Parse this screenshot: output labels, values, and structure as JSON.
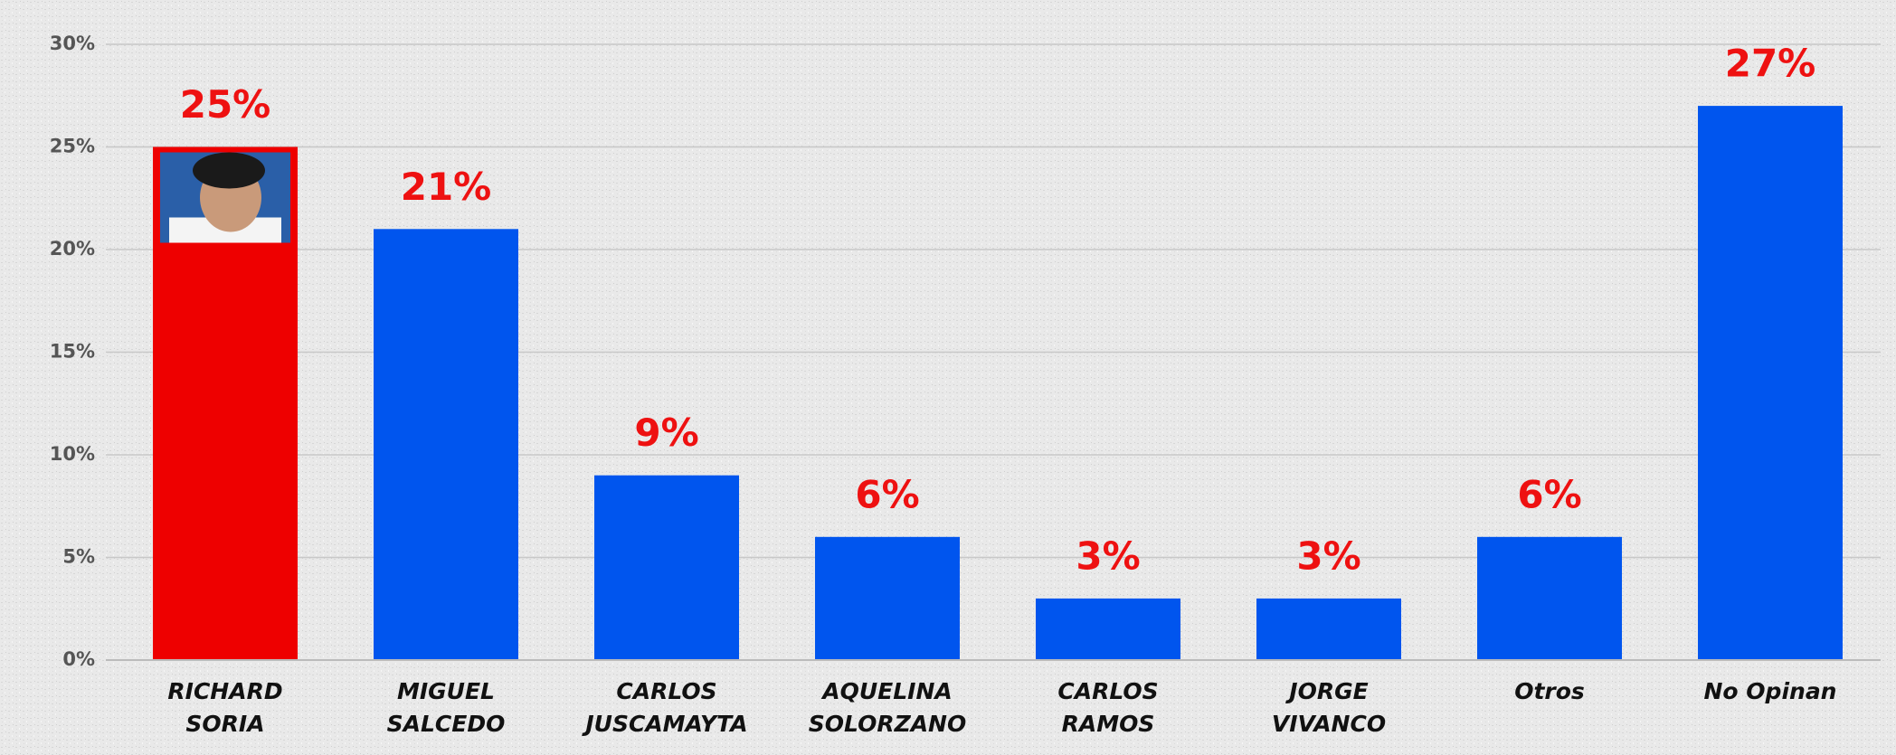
{
  "chart_data": {
    "type": "bar",
    "categories": [
      [
        "RICHARD",
        "SORIA"
      ],
      [
        "MIGUEL",
        "SALCEDO"
      ],
      [
        "CARLOS",
        "JUSCAMAYTA"
      ],
      [
        "AQUELINA",
        "SOLORZANO"
      ],
      [
        "CARLOS",
        "RAMOS"
      ],
      [
        "JORGE",
        "VIVANCO"
      ],
      [
        "Otros"
      ],
      [
        "No Opinan"
      ]
    ],
    "values": [
      25,
      21,
      9,
      6,
      3,
      3,
      6,
      27
    ],
    "value_labels": [
      "25%",
      "21%",
      "9%",
      "6%",
      "3%",
      "3%",
      "6%",
      "27%"
    ],
    "colors": [
      "#ee0000",
      "#0055ee",
      "#0055ee",
      "#0055ee",
      "#0055ee",
      "#0055ee",
      "#0055ee",
      "#0055ee"
    ],
    "ylim": [
      0,
      30
    ],
    "yticks": [
      {
        "value": 0,
        "label": "0%"
      },
      {
        "value": 5,
        "label": "5%"
      },
      {
        "value": 10,
        "label": "10%"
      },
      {
        "value": 15,
        "label": "15%"
      },
      {
        "value": 20,
        "label": "20%"
      },
      {
        "value": 25,
        "label": "25%"
      },
      {
        "value": 30,
        "label": "30%"
      }
    ],
    "grid": true
  }
}
